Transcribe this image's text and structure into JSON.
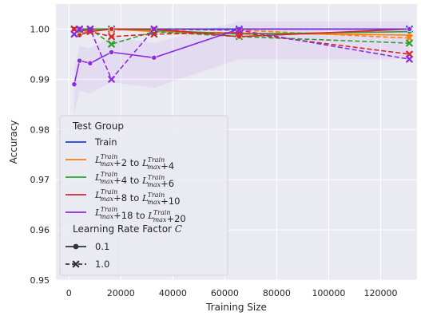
{
  "chart_data": {
    "type": "line",
    "xlabel": "Training Size",
    "ylabel": "Accuracy",
    "xlim": [
      -5000,
      134000
    ],
    "ylim": [
      0.95,
      1.005
    ],
    "xticks": [
      0,
      20000,
      40000,
      60000,
      80000,
      100000,
      120000
    ],
    "xtick_labels": [
      "0",
      "20000",
      "40000",
      "60000",
      "80000",
      "100000",
      "120000"
    ],
    "yticks": [
      0.95,
      0.96,
      0.97,
      0.98,
      0.99,
      1.0
    ],
    "ytick_labels": [
      "0.95",
      "0.96",
      "0.97",
      "0.98",
      "0.99",
      "1.00"
    ],
    "grid": true,
    "background": "#eaeaf2",
    "legend": {
      "placement": "lower-left",
      "group_title": "Test Group",
      "style_title_prefix": "Learning Rate Factor ",
      "style_title_var": "C",
      "style_entries": [
        {
          "label": "0.1",
          "dash": "solid",
          "marker": "circle"
        },
        {
          "label": "1.0",
          "dash": "dashed",
          "marker": "x"
        }
      ]
    },
    "series": [
      {
        "name": "Train",
        "label_parts": {
          "plain": "Train"
        },
        "color": "#1f3fd6",
        "lr_0_1": {
          "x": [
            2048,
            4096,
            8192,
            16384,
            32768,
            65536,
            131072
          ],
          "y": [
            1.0,
            1.0,
            1.0,
            1.0,
            1.0,
            1.0,
            1.0
          ]
        },
        "lr_1_0": {
          "x": [
            2048,
            4096,
            8192,
            16384,
            32768,
            65536,
            131072
          ],
          "y": [
            1.0,
            1.0,
            1.0,
            1.0,
            1.0,
            1.0,
            1.0
          ]
        }
      },
      {
        "name": "L_max^Train+2 to L_max^Train+4",
        "label_parts": {
          "offset_a": "+2",
          "mid": " to ",
          "offset_b": "+4"
        },
        "color": "#ff7f0e",
        "lr_0_1": {
          "x": [
            2048,
            4096,
            8192,
            16384,
            32768,
            65536,
            131072
          ],
          "y": [
            1.0,
            0.999,
            0.9998,
            1.0,
            0.9995,
            0.9992,
            0.9988
          ]
        },
        "lr_1_0": {
          "x": [
            2048,
            4096,
            8192,
            16384,
            32768,
            65536,
            131072
          ],
          "y": [
            1.0,
            1.0,
            1.0,
            0.9998,
            0.9999,
            0.9998,
            0.9982
          ]
        }
      },
      {
        "name": "L_max^Train+4 to L_max^Train+6",
        "label_parts": {
          "offset_a": "+4",
          "mid": " to ",
          "offset_b": "+6"
        },
        "color": "#2ca02c",
        "lr_0_1": {
          "x": [
            2048,
            4096,
            8192,
            16384,
            32768,
            65536,
            131072
          ],
          "y": [
            1.0,
            0.9995,
            1.0,
            1.0,
            0.9998,
            0.999,
            0.9995
          ]
        },
        "lr_1_0": {
          "x": [
            2048,
            4096,
            8192,
            16384,
            32768,
            65536,
            131072
          ],
          "y": [
            1.0,
            1.0,
            1.0,
            0.997,
            0.9995,
            0.9985,
            0.9972
          ]
        }
      },
      {
        "name": "L_max^Train+8 to L_max^Train+10",
        "label_parts": {
          "offset_a": "+8",
          "mid": " to ",
          "offset_b": "+10"
        },
        "color": "#d62728",
        "lr_0_1": {
          "x": [
            2048,
            4096,
            8192,
            16384,
            32768,
            65536,
            131072
          ],
          "y": [
            1.0,
            0.9988,
            0.9995,
            1.0,
            1.0,
            0.9985,
            1.0
          ]
        },
        "lr_1_0": {
          "x": [
            2048,
            4096,
            8192,
            16384,
            32768,
            65536,
            131072
          ],
          "y": [
            1.0,
            1.0,
            0.9995,
            0.9985,
            0.999,
            0.9993,
            0.995
          ]
        }
      },
      {
        "name": "L_max^Train+18 to L_max^Train+20",
        "label_parts": {
          "offset_a": "+18",
          "mid": " to ",
          "offset_b": "+20"
        },
        "color": "#8a2be2",
        "lr_0_1": {
          "x": [
            2048,
            4096,
            8192,
            16384,
            32768,
            65536,
            131072
          ],
          "y": [
            0.989,
            0.9937,
            0.9932,
            0.9954,
            0.9943,
            1.0,
            1.0
          ]
        },
        "lr_1_0": {
          "x": [
            2048,
            4096,
            8192,
            16384,
            32768,
            65536,
            131072
          ],
          "y": [
            0.999,
            1.0,
            1.0,
            0.99,
            1.0,
            0.9998,
            0.994
          ]
        }
      }
    ]
  }
}
